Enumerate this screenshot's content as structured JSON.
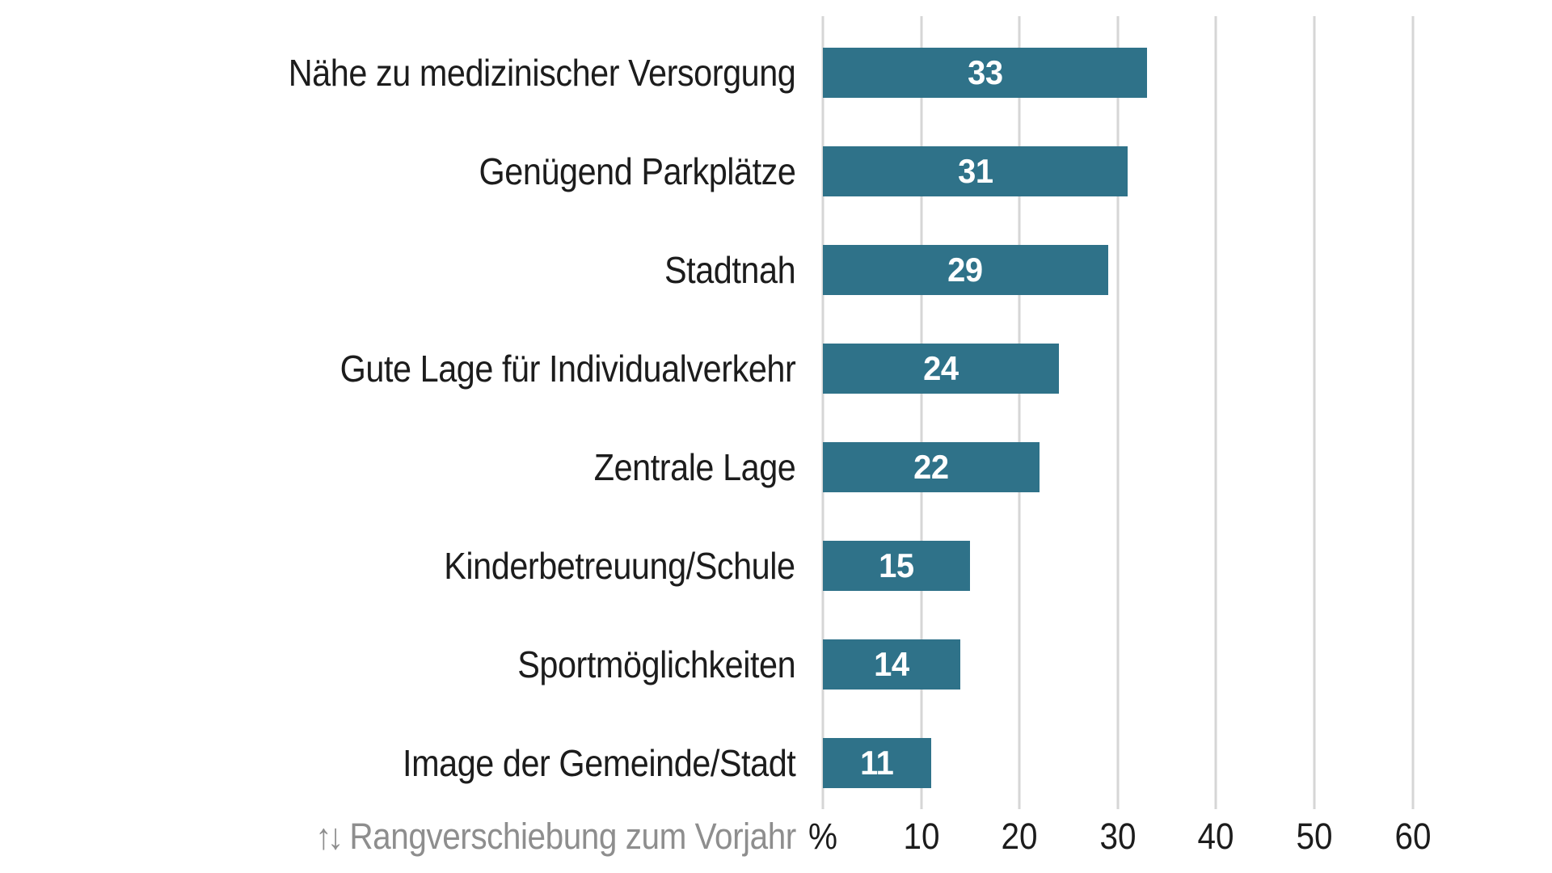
{
  "chart_data": {
    "type": "bar",
    "orientation": "horizontal",
    "title": "",
    "categories": [
      "Nähe zu medizinischer Versorgung",
      "Genügend Parkplätze",
      "Stadtnah",
      "Gute Lage für Individualverkehr",
      "Zentrale Lage",
      "Kinderbetreuung/Schule",
      "Sportmöglichkeiten",
      "Image der Gemeinde/Stadt"
    ],
    "values": [
      33,
      31,
      29,
      24,
      22,
      15,
      14,
      11
    ],
    "unit": "%",
    "xlabel": "%",
    "x_ticks": [
      10,
      20,
      30,
      40,
      50,
      60
    ],
    "xlim": [
      0,
      63
    ],
    "grid": "vertical",
    "legend": "none",
    "value_labels": "centered-inside-bar",
    "footnote": "↑↓ Rangverschiebung zum Vorjahr",
    "colors": {
      "bar": "#2F7289",
      "value_label": "#FFFFFF",
      "category_label": "#1C1C1C",
      "tick_label": "#1C1C1C",
      "gridline": "#D6D6D6",
      "footnote": "#8E8E8E",
      "background": "#FFFFFF"
    }
  },
  "axis": {
    "percent_symbol": "%"
  },
  "footnote": {
    "arrows": "↑↓",
    "text": "Rangverschiebung zum Vorjahr"
  }
}
